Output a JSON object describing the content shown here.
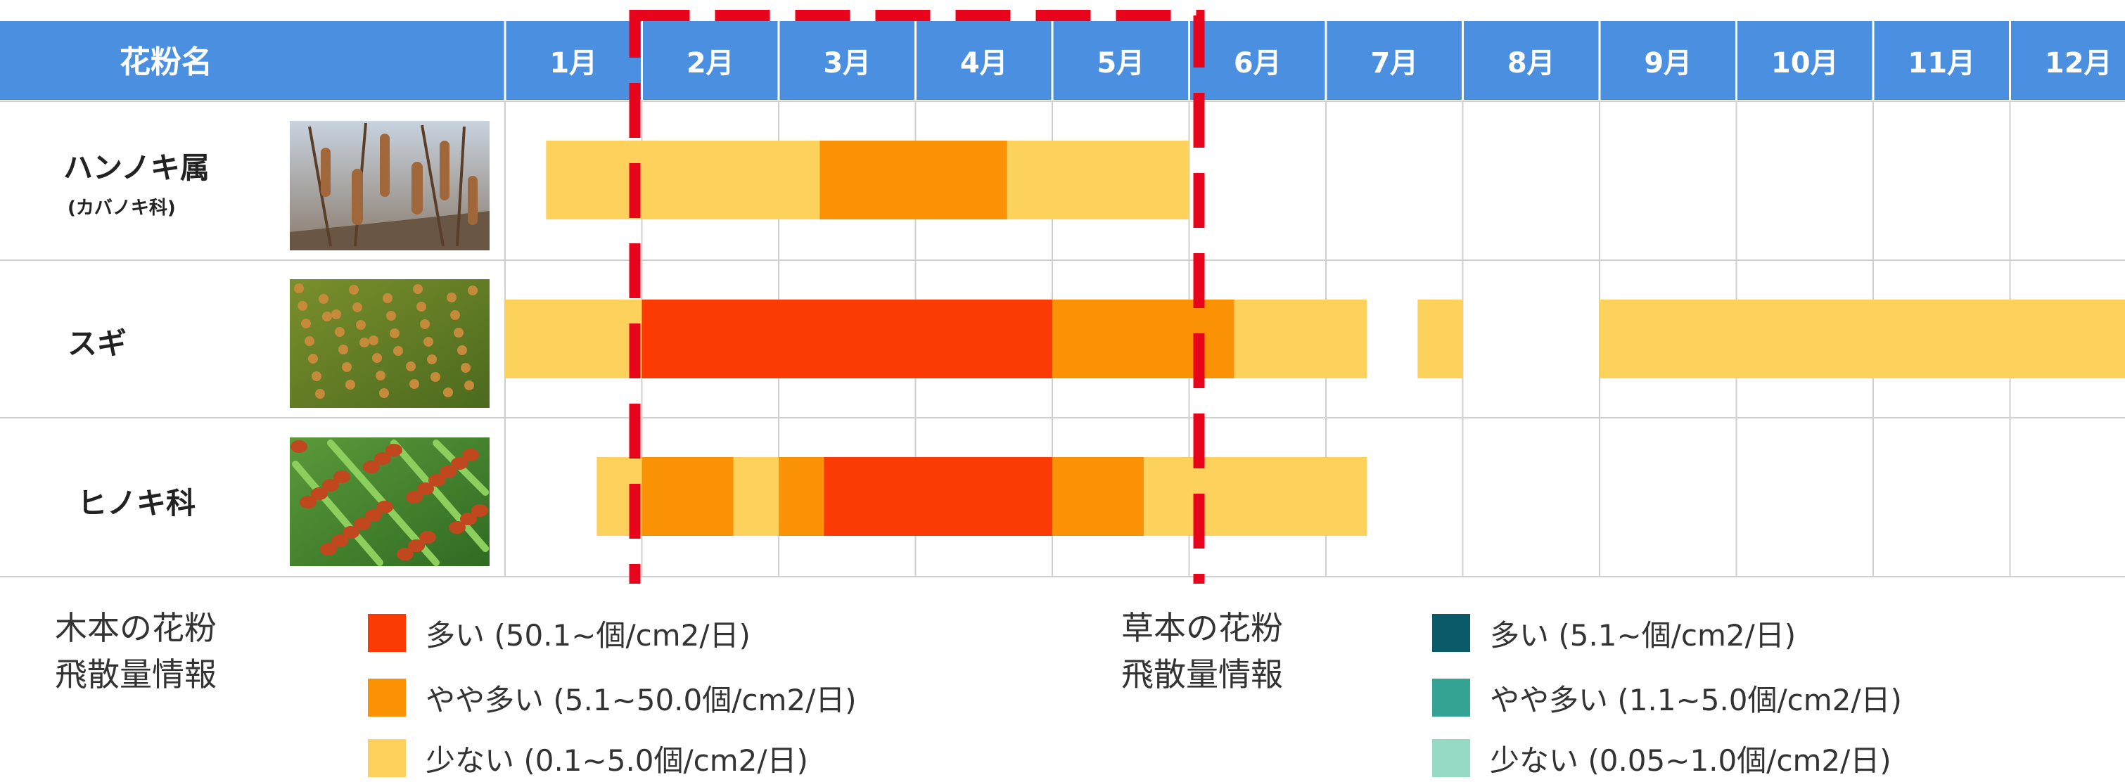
{
  "header": {
    "name_column": "花粉名"
  },
  "colors": {
    "header_bg": "#4a8fe0",
    "high": "#fb3a04",
    "mid": "#fb9104",
    "low": "#fdd25c",
    "grass_high": "#0a5a6a",
    "grass_mid": "#35a394",
    "grass_low": "#96d9c4",
    "highlight": "#e8051b"
  },
  "chart_data": {
    "type": "gantt",
    "months": [
      "1月",
      "2月",
      "3月",
      "4月",
      "5月",
      "6月",
      "7月",
      "8月",
      "9月",
      "10月",
      "11月",
      "12月"
    ],
    "highlight_range": [
      "2月",
      "5月"
    ],
    "rows": [
      {
        "name": "ハンノキ属",
        "sub": "(カバノキ科)",
        "image": "alder-catkins-photo",
        "segments": [
          {
            "start": 0.3,
            "end": 2.3,
            "level": "low"
          },
          {
            "start": 2.3,
            "end": 3.67,
            "level": "mid"
          },
          {
            "start": 3.67,
            "end": 5.0,
            "level": "low"
          }
        ]
      },
      {
        "name": "スギ",
        "sub": "",
        "image": "cedar-photo",
        "segments": [
          {
            "start": 0.0,
            "end": 1.0,
            "level": "low"
          },
          {
            "start": 1.0,
            "end": 4.0,
            "level": "high"
          },
          {
            "start": 4.0,
            "end": 5.33,
            "level": "mid"
          },
          {
            "start": 5.33,
            "end": 6.3,
            "level": "low"
          },
          {
            "start": 6.67,
            "end": 7.0,
            "level": "low"
          },
          {
            "start": 8.0,
            "end": 12.0,
            "level": "low"
          }
        ]
      },
      {
        "name": "ヒノキ科",
        "sub": "",
        "image": "cypress-photo",
        "segments": [
          {
            "start": 0.67,
            "end": 1.0,
            "level": "low"
          },
          {
            "start": 1.0,
            "end": 1.67,
            "level": "mid"
          },
          {
            "start": 1.67,
            "end": 2.0,
            "level": "low"
          },
          {
            "start": 2.0,
            "end": 2.33,
            "level": "mid"
          },
          {
            "start": 2.33,
            "end": 4.0,
            "level": "high"
          },
          {
            "start": 4.0,
            "end": 4.67,
            "level": "mid"
          },
          {
            "start": 4.67,
            "end": 6.3,
            "level": "low"
          }
        ]
      }
    ]
  },
  "legend": {
    "tree": {
      "title_line1": "木本の花粉",
      "title_line2": "飛散量情報",
      "items": [
        {
          "label": "多い (50.1~個/cm2/日)",
          "color": "#fb3a04"
        },
        {
          "label": "やや多い (5.1~50.0個/cm2/日)",
          "color": "#fb9104"
        },
        {
          "label": "少ない (0.1~5.0個/cm2/日)",
          "color": "#fdd25c"
        }
      ]
    },
    "grass": {
      "title_line1": "草本の花粉",
      "title_line2": "飛散量情報",
      "items": [
        {
          "label": "多い (5.1~個/cm2/日)",
          "color": "#0a5a6a"
        },
        {
          "label": "やや多い (1.1~5.0個/cm2/日)",
          "color": "#35a394"
        },
        {
          "label": "少ない (0.05~1.0個/cm2/日)",
          "color": "#96d9c4"
        }
      ]
    }
  }
}
